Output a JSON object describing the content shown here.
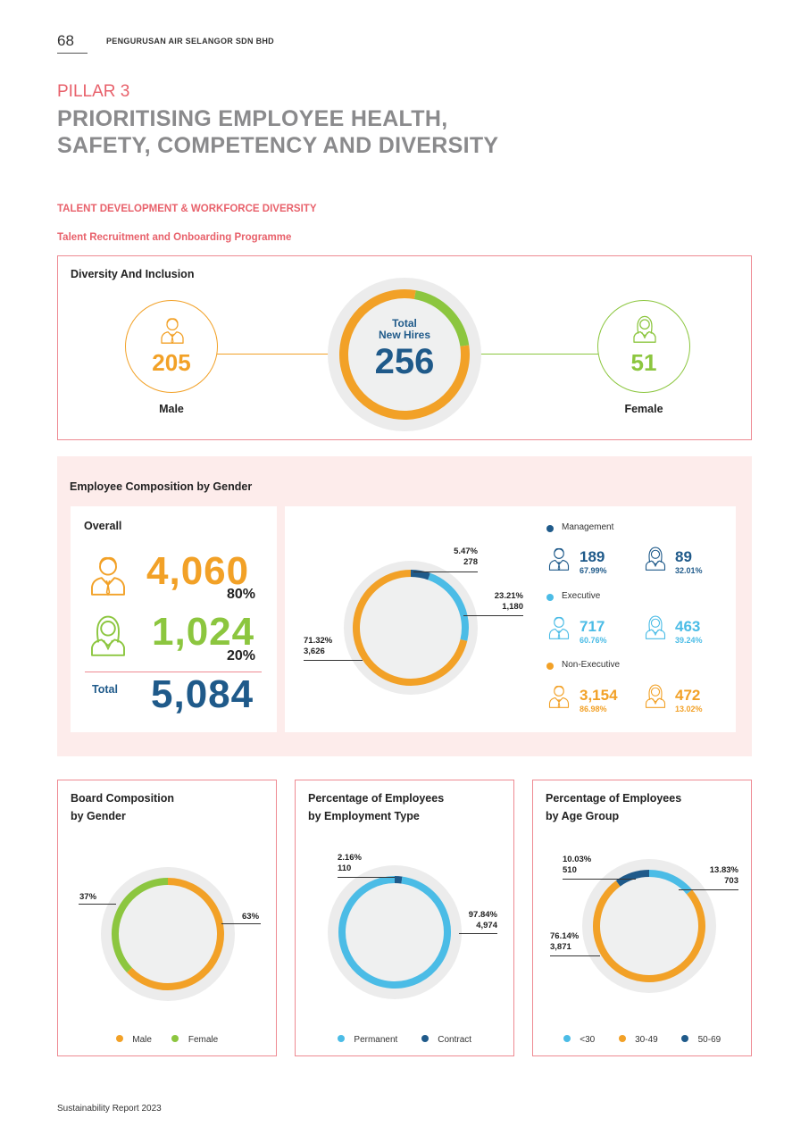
{
  "header": {
    "page_number": "68",
    "company": "PENGURUSAN AIR SELANGOR SDN BHD",
    "pillar": "PILLAR 3",
    "title_line1": "PRIORITISING EMPLOYEE HEALTH,",
    "title_line2": "SAFETY, COMPETENCY AND DIVERSITY",
    "section": "TALENT DEVELOPMENT & WORKFORCE DIVERSITY",
    "subsection": "Talent Recruitment and Onboarding Programme"
  },
  "colors": {
    "orange": "#f2a127",
    "green": "#8cc63f",
    "light_blue": "#4bbce6",
    "navy": "#1f5a8a",
    "pink": "#e8616b"
  },
  "diversity": {
    "title": "Diversity And Inclusion",
    "male_value": "205",
    "male_label": "Male",
    "female_value": "51",
    "female_label": "Female",
    "total_line1": "Total",
    "total_line2": "New Hires",
    "total_value": "256"
  },
  "composition": {
    "title": "Employee Composition by Gender",
    "overall_label": "Overall",
    "male_value": "4,060",
    "male_pct": "80%",
    "female_value": "1,024",
    "female_pct": "20%",
    "total_label": "Total",
    "total_value": "5,084",
    "labels": {
      "management": {
        "pct": "5.47%",
        "value": "278"
      },
      "executive": {
        "pct": "23.21%",
        "value": "1,180"
      },
      "non_executive": {
        "pct": "71.32%",
        "value": "3,626"
      }
    },
    "categories": [
      {
        "name": "Management",
        "male": "189",
        "male_pct": "67.99%",
        "female": "89",
        "female_pct": "32.01%"
      },
      {
        "name": "Executive",
        "male": "717",
        "male_pct": "60.76%",
        "female": "463",
        "female_pct": "39.24%"
      },
      {
        "name": "Non-Executive",
        "male": "3,154",
        "male_pct": "86.98%",
        "female": "472",
        "female_pct": "13.02%"
      }
    ]
  },
  "board": {
    "title_line1": "Board Composition",
    "title_line2": "by Gender",
    "female_pct": "37%",
    "male_pct": "63%",
    "legend": [
      "Male",
      "Female"
    ]
  },
  "employment": {
    "title_line1": "Percentage of Employees",
    "title_line2": "by Employment Type",
    "contract_pct": "2.16%",
    "contract_value": "110",
    "permanent_pct": "97.84%",
    "permanent_value": "4,974",
    "legend": [
      "Permanent",
      "Contract"
    ]
  },
  "age": {
    "title_line1": "Percentage of Employees",
    "title_line2": "by Age Group",
    "g50_pct": "10.03%",
    "g50_value": "510",
    "lt30_pct": "13.83%",
    "lt30_value": "703",
    "g30_pct": "76.14%",
    "g30_value": "3,871",
    "legend": [
      "<30",
      "30-49",
      "50-69"
    ]
  },
  "chart_data": [
    {
      "type": "pie",
      "categories": [
        "Male",
        "Female"
      ],
      "values": [
        205,
        51
      ]
    },
    {
      "type": "pie",
      "categories": [
        "Management",
        "Executive",
        "Non-Executive"
      ],
      "values": [
        5.47,
        23.21,
        71.32
      ]
    },
    {
      "type": "pie",
      "title": "Board Composition by Gender",
      "categories": [
        "Male",
        "Female"
      ],
      "values": [
        63,
        37
      ]
    },
    {
      "type": "pie",
      "title": "Percentage of Employees by Employment Type",
      "categories": [
        "Permanent",
        "Contract"
      ],
      "values": [
        97.84,
        2.16
      ]
    },
    {
      "type": "pie",
      "title": "Percentage of Employees by Age Group",
      "categories": [
        "<30",
        "30-49",
        "50-69"
      ],
      "values": [
        13.83,
        76.14,
        10.03
      ]
    }
  ],
  "footer": "Sustainability Report 2023"
}
